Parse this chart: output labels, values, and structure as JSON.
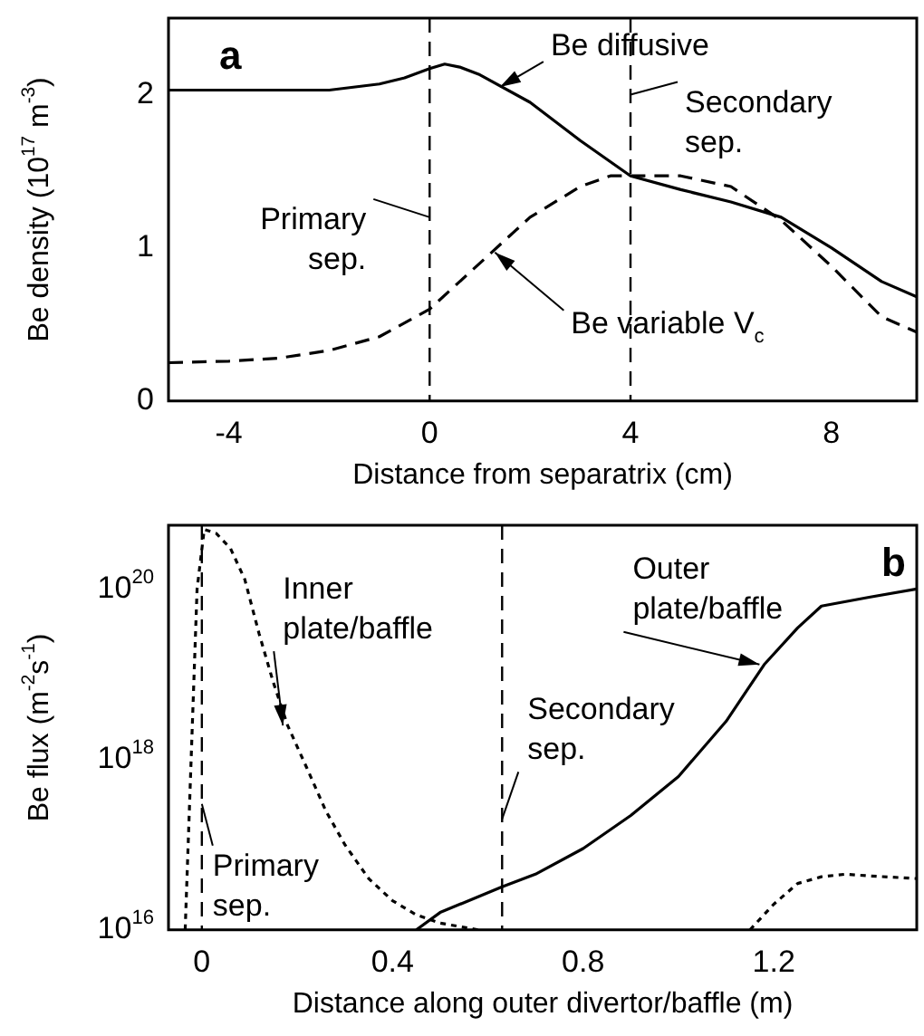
{
  "chart_data": [
    {
      "type": "line",
      "title": "a",
      "xlabel": "Distance from separatrix (cm)",
      "ylabel": "Be density (10$^{17}$ m$^{-3}$)",
      "xlim": [
        -5.2,
        9.7
      ],
      "xticks": [
        -4,
        0,
        4,
        8
      ],
      "ylim": [
        0,
        2.5
      ],
      "yticks": [
        0,
        1,
        2
      ],
      "grid": false,
      "legend": false,
      "marker": "none",
      "series": [
        {
          "color": "#000000",
          "line_style": "solid",
          "x": [
            -5.2,
            -3,
            -2,
            -1,
            -0.5,
            0,
            0.3,
            0.6,
            1,
            2,
            3,
            4,
            5,
            6,
            7,
            8,
            9,
            9.7
          ],
          "values": [
            2.03,
            2.03,
            2.03,
            2.07,
            2.11,
            2.17,
            2.2,
            2.18,
            2.13,
            1.95,
            1.7,
            1.47,
            1.38,
            1.3,
            1.2,
            1.0,
            0.78,
            0.68
          ]
        },
        {
          "color": "#000000",
          "line_style": "dashed",
          "x": [
            -5.2,
            -4,
            -3,
            -2,
            -1,
            0,
            1,
            2,
            3,
            3.6,
            4,
            5,
            6,
            7,
            8,
            9,
            9.7
          ],
          "values": [
            0.25,
            0.26,
            0.28,
            0.33,
            0.42,
            0.6,
            0.9,
            1.2,
            1.4,
            1.47,
            1.47,
            1.47,
            1.4,
            1.18,
            0.88,
            0.55,
            0.45
          ]
        }
      ],
      "ref_lines": [
        {
          "axis": "x",
          "value": 0,
          "color": "#000000",
          "line_style": "dashed"
        },
        {
          "axis": "x",
          "value": 4,
          "color": "#000000",
          "line_style": "dashed"
        }
      ],
      "annotations": [
        {
          "text": "Be diffusive",
          "x": 1.4,
          "y": 2.05
        },
        {
          "text": "Secondary sep.",
          "x": 4,
          "y": 2.0
        },
        {
          "text": "Primary sep.",
          "x": 0,
          "y": 1.2
        },
        {
          "text": "Be variable V$_{c}$",
          "x": 1.3,
          "y": 0.97
        }
      ]
    },
    {
      "type": "line",
      "title": "b",
      "xlabel": "Distance along outer divertor/baffle (m)",
      "ylabel": "Be flux (m$^{-2}$s$^{-1}$)",
      "log": "y",
      "xlim": [
        -0.07,
        1.5
      ],
      "xticks": [
        0,
        0.4,
        0.8,
        1.2
      ],
      "ylim": [
        1e+16,
        5.6e+20
      ],
      "yticks": [
        {
          "value": 1e+16,
          "label": "10$^{16}$"
        },
        {
          "value": 1e+18,
          "label": "10$^{18}$"
        },
        {
          "value": 1e+20,
          "label": "10$^{20}$"
        }
      ],
      "grid": false,
      "legend": false,
      "marker": "none",
      "series": [
        {
          "color": "#000000",
          "line_style": "solid",
          "x": [
            0.45,
            0.5,
            0.63,
            0.7,
            0.8,
            0.9,
            1.0,
            1.1,
            1.18,
            1.25,
            1.3,
            1.4,
            1.5
          ],
          "values": [
            1e+16,
            1.6e+16,
            3.2e+16,
            4.5e+16,
            9e+16,
            2.2e+17,
            6.3e+17,
            2.8e+18,
            1.3e+19,
            3.5e+19,
            6.3e+19,
            8e+19,
            1e+20
          ]
        },
        {
          "color": "#000000",
          "line_style": "dotted",
          "x": [
            -0.035,
            -0.01,
            0.005,
            0.03,
            0.06,
            0.09,
            0.12,
            0.15,
            0.18,
            0.22,
            0.26,
            0.3,
            0.35,
            0.4,
            0.45,
            0.5,
            0.58,
            0.9,
            1.15,
            1.2,
            1.25,
            1.3,
            1.35,
            1.4,
            1.5
          ],
          "values": [
            1e+16,
            1e+20,
            5e+20,
            4.5e+20,
            3e+20,
            1.3e+20,
            3e+19,
            8e+18,
            2.5e+18,
            8e+17,
            2.5e+17,
            1e+17,
            4e+16,
            2.2e+16,
            1.5e+16,
            1.2e+16,
            1e+16,
            null,
            1e+16,
            2e+16,
            3.5e+16,
            4.2e+16,
            4.5e+16,
            4.3e+16,
            4e+16
          ]
        }
      ],
      "ref_lines": [
        {
          "axis": "x",
          "value": 0,
          "color": "#000000",
          "line_style": "dashed"
        },
        {
          "axis": "x",
          "value": 0.63,
          "color": "#000000",
          "line_style": "dashed"
        }
      ],
      "annotations": [
        {
          "text": "Inner plate/baffle",
          "x": 0.17,
          "y": 2.5e+18
        },
        {
          "text": "Outer plate/baffle",
          "x": 1.17,
          "y": 1.3e+19
        },
        {
          "text": "Secondary sep.",
          "x": 0.63,
          "y": 2e+17
        },
        {
          "text": "Primary sep.",
          "x": 0,
          "y": 3e+17
        }
      ]
    }
  ]
}
